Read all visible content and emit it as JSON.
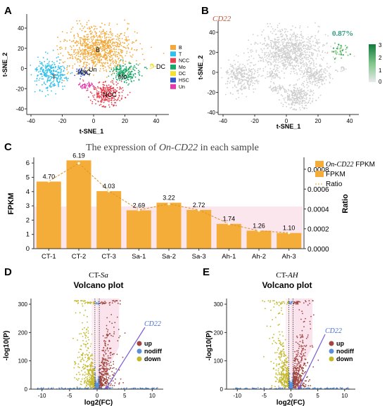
{
  "panels": {
    "A": {
      "letter": "A",
      "xlabel": "t-SNE_1",
      "ylabel": "t-SNE_2",
      "xticks": [
        -40,
        -20,
        0,
        20,
        40
      ],
      "yticks": [
        40,
        20,
        0,
        -20,
        -40
      ],
      "legend": [
        {
          "label": "B",
          "color": "#f2a93b"
        },
        {
          "label": "T",
          "color": "#31c0e8"
        },
        {
          "label": "NCC",
          "color": "#e8404e"
        },
        {
          "label": "Mo",
          "color": "#1aa86a"
        },
        {
          "label": "DC",
          "color": "#f3e030"
        },
        {
          "label": "HSC",
          "color": "#2f55c9"
        },
        {
          "label": "Un",
          "color": "#e23aa8"
        }
      ],
      "cluster_labels": {
        "B": "B",
        "T": "T",
        "HSC": "HSC",
        "Un": "Un",
        "Mo": "Mo",
        "NCC": "NCC",
        "DC": "DC"
      }
    },
    "B": {
      "letter": "B",
      "gene": "CD22",
      "percent": "0.87%",
      "xlabel": "t-SNE_1",
      "ylabel": "t-SNE_2",
      "xticks": [
        -40,
        -20,
        0,
        20,
        40
      ],
      "yticks": [
        40,
        20,
        0,
        -20,
        -40
      ],
      "colorbar_ticks": [
        "3",
        "2",
        "1",
        "0"
      ]
    },
    "C": {
      "letter": "C",
      "title_prefix": "The expression of ",
      "title_gene": "On-CD22",
      "title_suffix": " in each sample",
      "legend_fpkm_gene": "On-CD22",
      "legend_fpkm_suffix": " FPKM",
      "legend_fpkm2": "FPKM",
      "legend_ratio": "Ratio"
    },
    "D": {
      "letter": "D",
      "subtitle_prefix": "CT-",
      "subtitle_group": "Sa",
      "title": "Volcano plot",
      "xlabel": "log2(FC)",
      "ylabel": "-log10(P)",
      "xticks": [
        -10,
        -5,
        0,
        5,
        10
      ],
      "yticks": [
        0,
        100,
        200,
        300
      ],
      "annot": "CD22",
      "legend": [
        "up",
        "nodiff",
        "down"
      ]
    },
    "E": {
      "letter": "E",
      "subtitle_prefix": "CT-",
      "subtitle_group": "AH",
      "title": "Volcano plot",
      "xlabel": "log2(FC)",
      "ylabel": "-log10(P)",
      "xticks": [
        -10,
        -5,
        0,
        5,
        10
      ],
      "yticks": [
        0,
        100,
        200,
        300
      ],
      "annot": "CD22",
      "legend": [
        "up",
        "nodiff",
        "down"
      ]
    }
  },
  "colors": {
    "bar": "#f5ad3a",
    "ratio_line": "#f5ad3a",
    "up": "#a0463f",
    "nodiff": "#5b8fd8",
    "down": "#c2b82a",
    "percent": "#2e9a7e",
    "gene": "#c0533c"
  },
  "chart_data": [
    {
      "type": "bar",
      "panel": "C",
      "categories": [
        "CT-1",
        "CT-2",
        "CT-3",
        "Sa-1",
        "Sa-2",
        "Sa-3",
        "Ah-1",
        "Ah-2",
        "Ah-3"
      ],
      "series": [
        {
          "name": "On-CD22 FPKM",
          "values": [
            4.7,
            6.19,
            4.03,
            2.69,
            3.22,
            2.72,
            1.74,
            1.26,
            1.1
          ]
        },
        {
          "name": "Ratio",
          "axis": "right",
          "values": [
            0.00068,
            0.00086,
            0.00058,
            0.00039,
            0.00045,
            0.00039,
            0.00025,
            0.00018,
            0.00016
          ]
        }
      ],
      "value_labels": [
        "4.70",
        "6.19",
        "4.03",
        "2.69",
        "3.22",
        "2.72",
        "1.74",
        "1.26",
        "1.10"
      ],
      "ylabel": "FPKM",
      "y2label": "Ratio",
      "ylim": [
        0,
        6.4
      ],
      "y2lim": [
        0,
        0.00092
      ],
      "yticks": [
        0,
        1,
        2,
        3,
        4,
        5,
        6
      ],
      "y2ticks": [
        "0.0000",
        "0.0002",
        "0.0004",
        "0.0006",
        "0.0008"
      ],
      "y2tick_values": [
        0,
        0.0002,
        0.0004,
        0.0006,
        0.0008
      ]
    },
    {
      "type": "scatter",
      "panel": "D",
      "xlim": [
        -12,
        12
      ],
      "ylim": [
        0,
        320
      ],
      "highlight": {
        "name": "CD22",
        "x": 1.7,
        "y": 4
      },
      "series": [
        {
          "name": "up"
        },
        {
          "name": "nodiff"
        },
        {
          "name": "down"
        }
      ]
    },
    {
      "type": "scatter",
      "panel": "E",
      "xlim": [
        -12,
        12
      ],
      "ylim": [
        0,
        320
      ],
      "highlight": {
        "name": "CD22",
        "x": 1.5,
        "y": 4
      },
      "series": [
        {
          "name": "up"
        },
        {
          "name": "nodiff"
        },
        {
          "name": "down"
        }
      ]
    }
  ]
}
